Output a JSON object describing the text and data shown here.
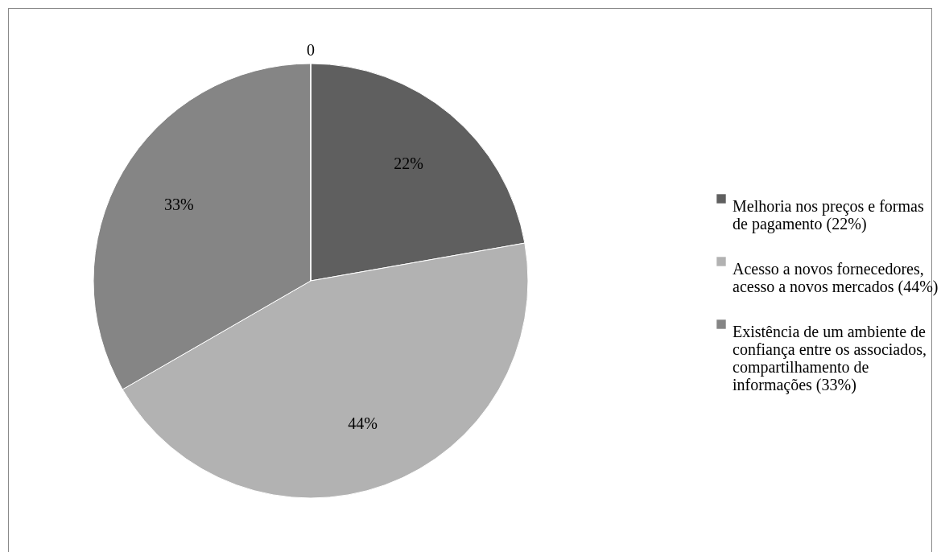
{
  "chart_data": {
    "type": "pie",
    "categories": [
      "Melhoria nos preços e formas de pagamento (22%)",
      "Acesso a novos fornecedores, acesso a novos mercados (44%)",
      "Existência de um ambiente de confiança entre os associados, compartilhamento de informações (33%)",
      null
    ],
    "values": [
      22,
      44,
      33,
      0
    ],
    "value_labels": [
      "22%",
      "44%",
      "33%",
      "0"
    ],
    "colors": [
      "#5f5f5f",
      "#b2b2b2",
      "#858585",
      "#9a9a9a"
    ],
    "legend": "right"
  }
}
